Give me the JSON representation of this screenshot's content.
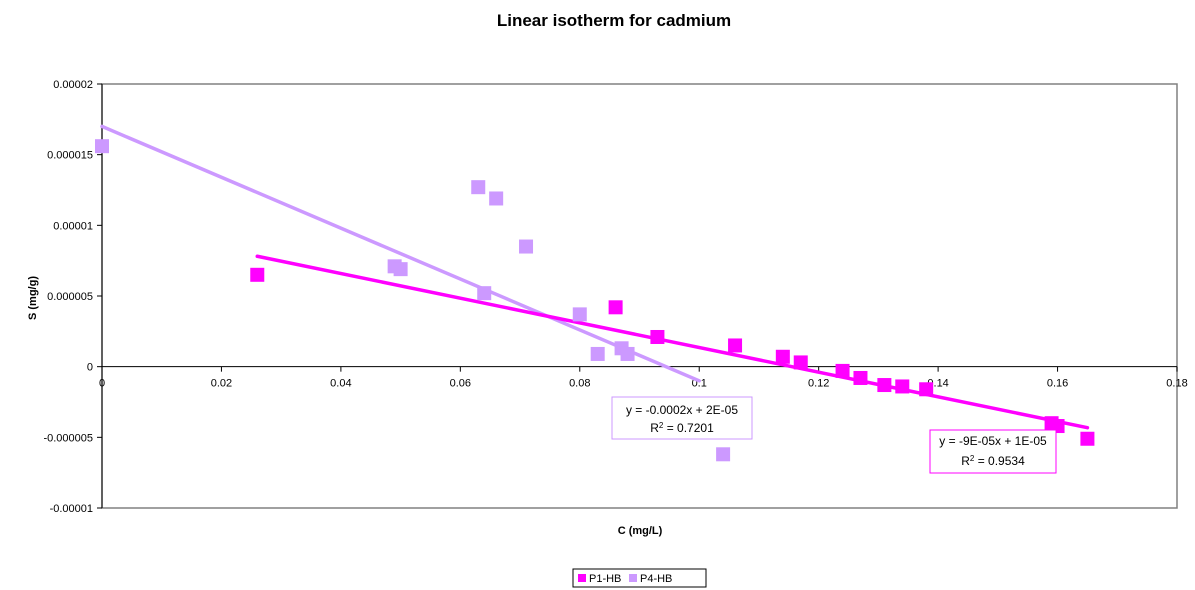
{
  "chart_data": {
    "type": "scatter",
    "title": "Linear isotherm for cadmium",
    "xlabel": "C (mg/L)",
    "ylabel": "S (mg/g)",
    "xlim": [
      0,
      0.18
    ],
    "ylim": [
      -1e-05,
      2e-05
    ],
    "x_ticks": [
      "0",
      "0.02",
      "0.04",
      "0.06",
      "0.08",
      "0.1",
      "0.12",
      "0.14",
      "0.16",
      "0.18"
    ],
    "y_ticks": [
      "0.00002",
      "0.000015",
      "0.00001",
      "0.000005",
      "0",
      "-0.000005",
      "-0.00001"
    ],
    "grid": false,
    "legend": "bottom",
    "series": [
      {
        "name": "P1-HB",
        "color": "#ff00ff",
        "points": [
          [
            0.026,
            6.5e-06
          ],
          [
            0.086,
            4.2e-06
          ],
          [
            0.093,
            2.1e-06
          ],
          [
            0.106,
            1.5e-06
          ],
          [
            0.114,
            7e-07
          ],
          [
            0.117,
            3e-07
          ],
          [
            0.124,
            -3e-07
          ],
          [
            0.127,
            -8e-07
          ],
          [
            0.131,
            -1.3e-06
          ],
          [
            0.134,
            -1.4e-06
          ],
          [
            0.138,
            -1.6e-06
          ],
          [
            0.159,
            -4e-06
          ],
          [
            0.16,
            -4.2e-06
          ],
          [
            0.165,
            -5.1e-06
          ]
        ],
        "trendline": {
          "x_range": [
            0.026,
            0.165
          ],
          "slope": -8.725e-05,
          "intercept": 1.008e-05,
          "equation": "y = -9E-05x + 1E-05",
          "r2_label": "R",
          "r2_sup": "2",
          "r2_value": " = 0.9534"
        }
      },
      {
        "name": "P4-HB",
        "color": "#cc99ff",
        "points": [
          [
            0,
            1.56e-05
          ],
          [
            0.049,
            7.1e-06
          ],
          [
            0.05,
            6.9e-06
          ],
          [
            0.063,
            1.27e-05
          ],
          [
            0.064,
            5.2e-06
          ],
          [
            0.066,
            1.19e-05
          ],
          [
            0.071,
            8.5e-06
          ],
          [
            0.08,
            3.7e-06
          ],
          [
            0.083,
            9e-07
          ],
          [
            0.087,
            1.3e-06
          ],
          [
            0.088,
            9e-07
          ],
          [
            0.104,
            -6.2e-06
          ]
        ],
        "trendline": {
          "x_range": [
            0,
            0.1
          ],
          "slope": -0.00018,
          "intercept": 1.7e-05,
          "equation": "y = -0.0002x + 2E-05",
          "r2_label": "R",
          "r2_sup": "2",
          "r2_value": " = 0.7201"
        }
      }
    ]
  }
}
